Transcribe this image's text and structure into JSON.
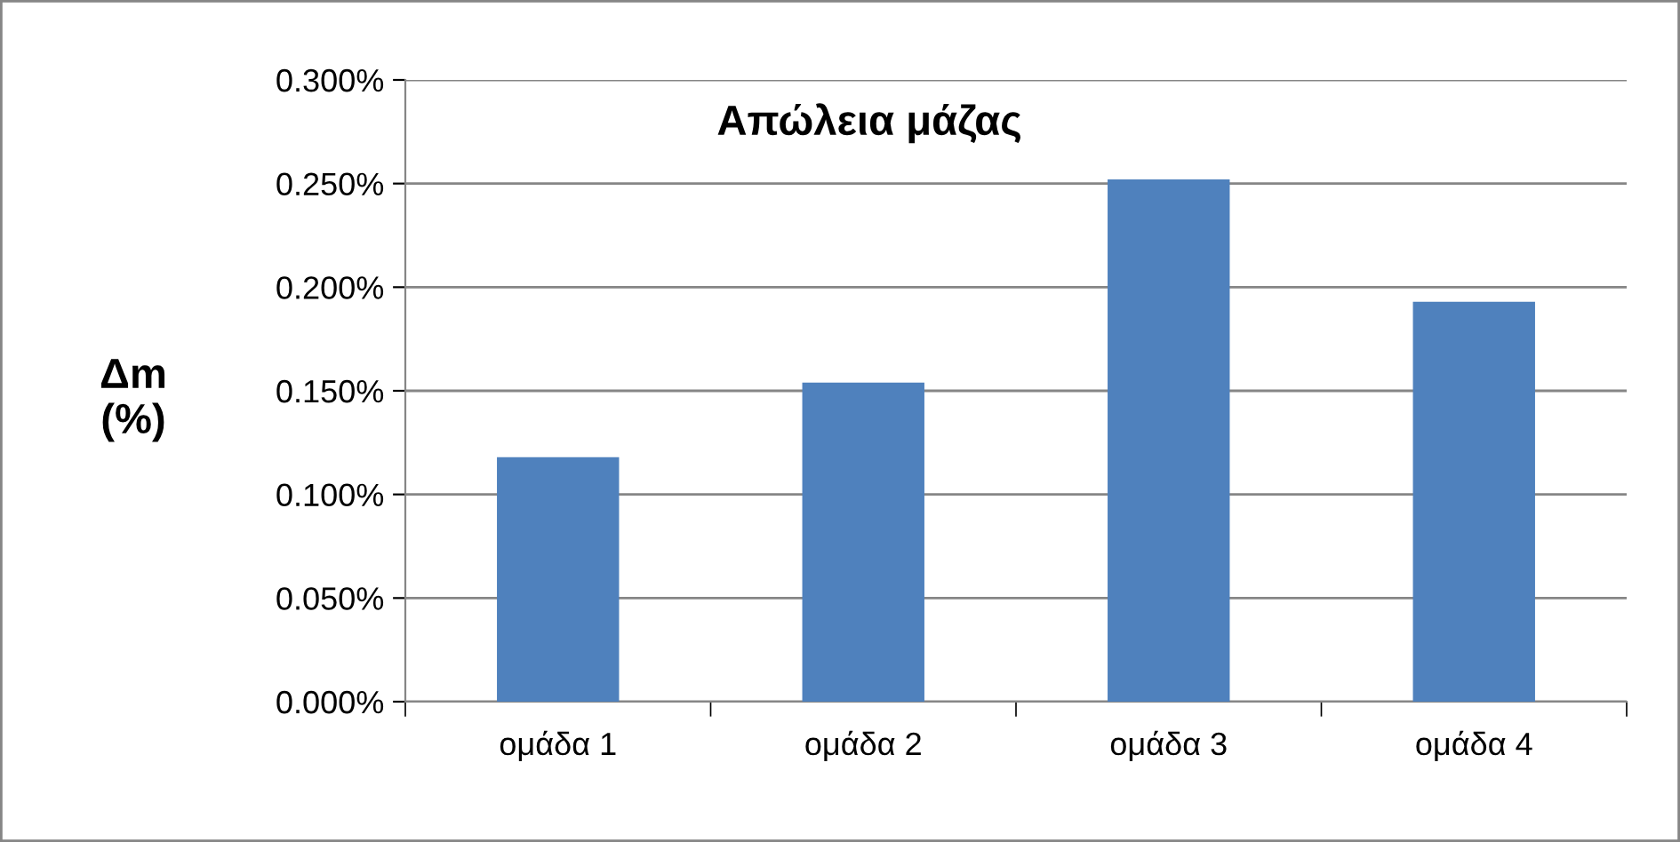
{
  "chart_data": {
    "type": "bar",
    "title": "Απώλεια μάζας",
    "ylabel": "Δm\n(%)",
    "categories": [
      "ομάδα 1",
      "ομάδα 2",
      "ομάδα 3",
      "ομάδα 4"
    ],
    "values": [
      0.118,
      0.154,
      0.252,
      0.193
    ],
    "color": "#4f81bd",
    "ylim": [
      0,
      0.3
    ],
    "yticks": [
      {
        "value": 0,
        "label": "0.000%"
      },
      {
        "value": 0.05,
        "label": "0.050%"
      },
      {
        "value": 0.1,
        "label": "0.100%"
      },
      {
        "value": 0.15,
        "label": "0.150%"
      },
      {
        "value": 0.2,
        "label": "0.200%"
      },
      {
        "value": 0.25,
        "label": "0.250%"
      },
      {
        "value": 0.3,
        "label": "0.300%"
      }
    ],
    "grid": "y"
  }
}
